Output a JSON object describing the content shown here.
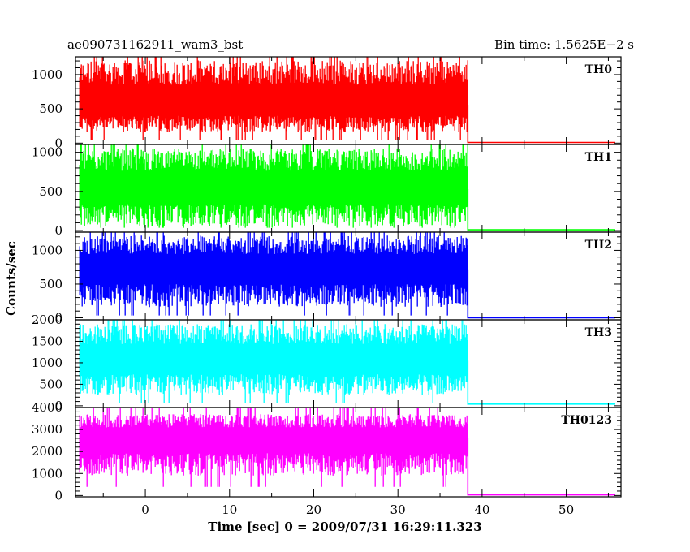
{
  "header": {
    "left_title": "ae090731162911_wam3_bst",
    "right_title": "Bin time: 1.5625E−2 s"
  },
  "chart_data": {
    "type": "line",
    "title": "ae090731162911_wam3_bst",
    "subtitle": "Bin time: 1.5625E−2 s",
    "xlabel": "Time [sec] 0 = 2009/07/31 16:29:11.323",
    "ylabel": "Counts/sec",
    "xlim": [
      -8.3,
      56.5
    ],
    "x_ticks": [
      0,
      10,
      20,
      30,
      40,
      50
    ],
    "data_x_start": -7.8,
    "data_x_active_end": 38.3,
    "data_x_end": 55.8,
    "grid": false,
    "legend": "none",
    "series": [
      {
        "name": "TH0",
        "color": "#ff0000",
        "ylim": [
          -20,
          1260
        ],
        "y_ticks": [
          0,
          500,
          1000
        ],
        "active_mean": 560,
        "active_noise_low": 400,
        "active_noise_high": 650,
        "active_max": 1260,
        "baseline": 10
      },
      {
        "name": "TH1",
        "color": "#00ff00",
        "ylim": [
          -20,
          1100
        ],
        "y_ticks": [
          0,
          500,
          1000
        ],
        "active_mean": 530,
        "active_noise_low": 480,
        "active_noise_high": 520,
        "active_max": 1100,
        "baseline": 10
      },
      {
        "name": "TH2",
        "color": "#0000ff",
        "ylim": [
          -30,
          1270
        ],
        "y_ticks": [
          0,
          500,
          1000
        ],
        "active_mean": 720,
        "active_noise_low": 560,
        "active_noise_high": 500,
        "active_max": 1270,
        "baseline": 0
      },
      {
        "name": "TH3",
        "color": "#00ffff",
        "ylim": [
          -40,
          2000
        ],
        "y_ticks": [
          0,
          500,
          1000,
          1500,
          2000
        ],
        "active_mean": 1050,
        "active_noise_low": 800,
        "active_noise_high": 850,
        "active_max": 2000,
        "baseline": 40
      },
      {
        "name": "TH0123",
        "color": "#ff00ff",
        "ylim": [
          -60,
          4000
        ],
        "y_ticks": [
          0,
          1000,
          2000,
          3000,
          4000
        ],
        "active_mean": 2600,
        "active_noise_low": 1700,
        "active_noise_high": 1100,
        "active_max": 4000,
        "baseline": 30
      }
    ]
  }
}
